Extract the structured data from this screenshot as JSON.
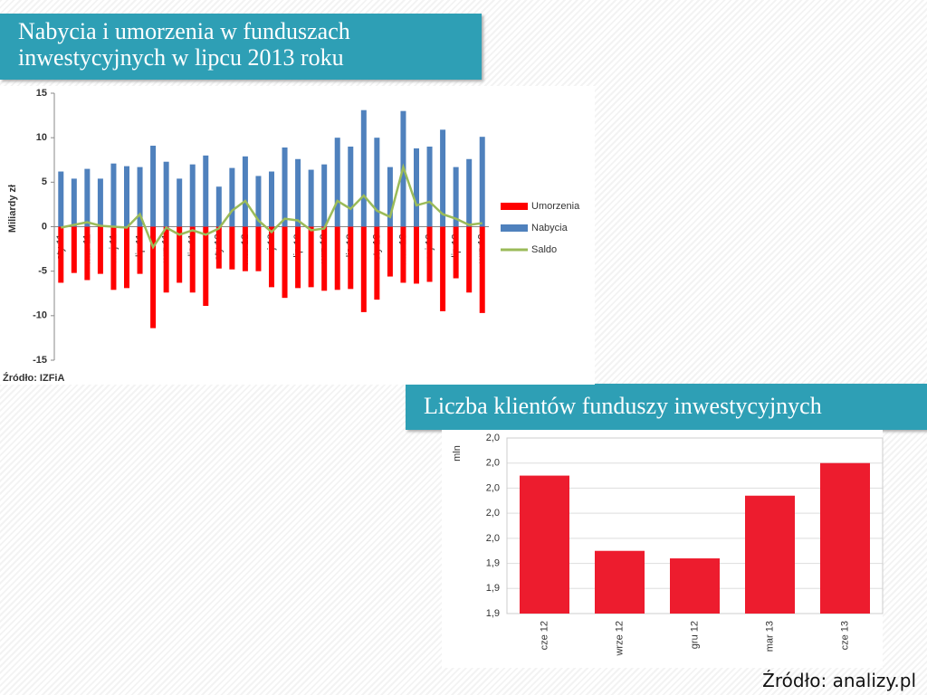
{
  "header": {
    "title1": "Nabycia i umorzenia w funduszach",
    "title1b": "inwestycyjnych w lipcu 2013 roku",
    "title2": "Liczba klientów funduszy inwestycyjnych",
    "source": "Źródło: analizy.pl"
  },
  "chart_data": [
    {
      "type": "bar",
      "ylabel": "Miliardy zł",
      "source": "Źródło: IZFiA",
      "categories": [
        "sty 11",
        null,
        "mar 11",
        null,
        "maj 11",
        null,
        "lip 11",
        null,
        "wrz 11",
        null,
        "lis 11",
        null,
        "sty 12",
        null,
        "mar 12",
        null,
        "maj 12",
        null,
        "lip 12",
        null,
        "wrz 12",
        null,
        "lis 12",
        null,
        "sty 13",
        null,
        "mar 13",
        null,
        "maj 13",
        null,
        "lip 13",
        null,
        "wrz 13"
      ],
      "series": [
        {
          "name": "Umorzenia",
          "color": "#ff0000",
          "values": [
            -6.3,
            -5.2,
            -6.0,
            -5.3,
            -7.1,
            -6.9,
            -5.3,
            -11.4,
            -7.4,
            -6.3,
            -7.4,
            -8.9,
            -4.7,
            -4.8,
            -5.0,
            -5.0,
            -6.8,
            -8.0,
            -6.9,
            -6.8,
            -7.2,
            -7.1,
            -7.0,
            -9.6,
            -8.2,
            -5.6,
            -6.3,
            -6.4,
            -6.2,
            -9.5,
            -5.8,
            -7.4,
            -9.7
          ]
        },
        {
          "name": "Nabycia",
          "color": "#4f81bd",
          "values": [
            6.2,
            5.4,
            6.5,
            5.4,
            7.1,
            6.8,
            6.7,
            9.1,
            7.3,
            5.4,
            7.0,
            8.0,
            4.5,
            6.6,
            7.9,
            5.7,
            6.2,
            8.9,
            7.6,
            6.4,
            7.0,
            10.0,
            9.0,
            13.1,
            10.0,
            6.7,
            13.0,
            8.8,
            9.0,
            10.9,
            6.7,
            7.6,
            10.1
          ]
        },
        {
          "name": "Saldo",
          "color": "#9bbb59",
          "type": "line",
          "values": [
            -0.1,
            0.2,
            0.5,
            0.1,
            0.0,
            -0.1,
            1.4,
            -2.3,
            -0.1,
            -0.9,
            -0.4,
            -0.9,
            -0.2,
            1.8,
            2.9,
            0.7,
            -0.6,
            0.9,
            0.7,
            -0.4,
            -0.2,
            2.9,
            2.0,
            3.5,
            1.8,
            1.1,
            6.7,
            2.4,
            2.8,
            1.4,
            0.9,
            0.2,
            0.4
          ]
        }
      ],
      "ylim": [
        -15,
        15
      ],
      "yticks": [
        -15,
        -10,
        -5,
        0,
        5,
        10,
        15
      ],
      "legend": "right"
    },
    {
      "type": "bar",
      "ylabel": "mln",
      "color": "#ed1c2e",
      "categories": [
        "cze 12",
        "wrze 12",
        "gru 12",
        "mar 13",
        "cze 13"
      ],
      "values": [
        1.985,
        1.955,
        1.952,
        1.977,
        1.99
      ],
      "ylim": [
        1.93,
        2.0
      ],
      "yticks": [
        {
          "value": 1.93,
          "label": "1,9"
        },
        {
          "value": 1.94,
          "label": "1,9"
        },
        {
          "value": 1.95,
          "label": "1,9"
        },
        {
          "value": 1.96,
          "label": "2,0"
        },
        {
          "value": 1.97,
          "label": "2,0"
        },
        {
          "value": 1.98,
          "label": "2,0"
        },
        {
          "value": 1.99,
          "label": "2,0"
        },
        {
          "value": 2.0,
          "label": "2,0"
        }
      ],
      "grid": true
    }
  ]
}
